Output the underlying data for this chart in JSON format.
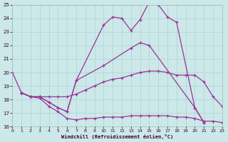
{
  "xlabel": "Windchill (Refroidissement éolien,°C)",
  "xlim": [
    0,
    23
  ],
  "ylim": [
    16,
    25
  ],
  "xticks": [
    0,
    1,
    2,
    3,
    4,
    5,
    6,
    7,
    8,
    9,
    10,
    11,
    12,
    13,
    14,
    15,
    16,
    17,
    18,
    19,
    20,
    21,
    22,
    23
  ],
  "yticks": [
    16,
    17,
    18,
    19,
    20,
    21,
    22,
    23,
    24,
    25
  ],
  "bg_color": "#cce8e8",
  "grid_color": "#aad4d4",
  "line_color": "#993399",
  "curve1_x": [
    0,
    1,
    2,
    3,
    4,
    5,
    6,
    7,
    10,
    13,
    14,
    15,
    20,
    21
  ],
  "curve1_y": [
    20.0,
    18.5,
    18.2,
    18.2,
    17.8,
    17.4,
    17.1,
    19.4,
    20.5,
    21.8,
    22.2,
    22.0,
    17.4,
    16.3
  ],
  "curve2_x": [
    1,
    2,
    3,
    4,
    5,
    6,
    7,
    10,
    11,
    12,
    13,
    14,
    15,
    16,
    17,
    18,
    20,
    21
  ],
  "curve2_y": [
    18.5,
    18.2,
    18.2,
    17.8,
    17.4,
    17.1,
    19.4,
    23.5,
    24.1,
    24.0,
    23.1,
    23.9,
    25.2,
    25.0,
    24.1,
    23.7,
    17.4,
    16.3
  ],
  "curve3_x": [
    1,
    2,
    3,
    4,
    5,
    6,
    7,
    8,
    9,
    10,
    11,
    12,
    13,
    14,
    15,
    16,
    17,
    18,
    19,
    20,
    21,
    22,
    23
  ],
  "curve3_y": [
    18.5,
    18.2,
    18.1,
    17.5,
    17.1,
    16.6,
    16.5,
    16.6,
    16.6,
    16.7,
    16.7,
    16.7,
    16.8,
    16.8,
    16.8,
    16.8,
    16.8,
    16.7,
    16.7,
    16.6,
    16.4,
    16.4,
    16.3
  ],
  "curve4_x": [
    1,
    2,
    3,
    4,
    5,
    6,
    7,
    8,
    9,
    10,
    11,
    12,
    13,
    14,
    15,
    16,
    17,
    18,
    19,
    20,
    21,
    22,
    23
  ],
  "curve4_y": [
    18.5,
    18.2,
    18.2,
    18.2,
    18.2,
    18.2,
    18.4,
    18.7,
    19.0,
    19.3,
    19.5,
    19.6,
    19.8,
    20.0,
    20.1,
    20.1,
    20.0,
    19.8,
    19.8,
    19.8,
    19.3,
    18.2,
    17.5
  ]
}
